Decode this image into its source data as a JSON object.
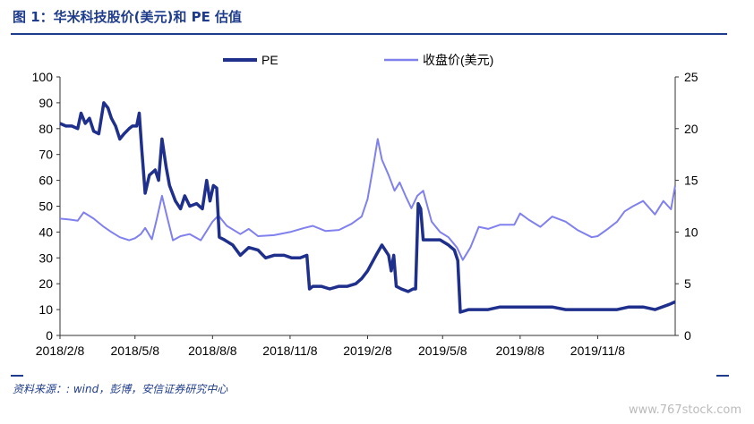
{
  "header": {
    "title": "图 1：华米科技股价(美元)和 PE 估值"
  },
  "footer": {
    "source": "资料来源：: wind，彭博，安信证券研究中心",
    "watermark": "www.767stock.com"
  },
  "colors": {
    "pe": "#1f2f8c",
    "price": "#8080ee",
    "accent": "#1f3c8c"
  },
  "chart_data": {
    "type": "line",
    "title": "",
    "xlabel": "",
    "ylabel": "",
    "x_ticks": [
      "2018/2/8",
      "2018/5/8",
      "2018/8/8",
      "2018/11/8",
      "2019/2/8",
      "2019/5/8",
      "2019/8/8",
      "2019/11/8"
    ],
    "x_range": [
      "2018/2/8",
      "2020/2/8"
    ],
    "ylim_left": [
      0,
      100
    ],
    "yticks_left": [
      0,
      10,
      20,
      30,
      40,
      50,
      60,
      70,
      80,
      90,
      100
    ],
    "ylim_right": [
      0,
      25
    ],
    "yticks_right": [
      0,
      5,
      10,
      15,
      20,
      25
    ],
    "grid": false,
    "legend_position": "top",
    "series": [
      {
        "name": "PE",
        "axis": "left",
        "points": [
          [
            "2018/2/8",
            82
          ],
          [
            "2018/2/15",
            81
          ],
          [
            "2018/2/22",
            81
          ],
          [
            "2018/3/1",
            80
          ],
          [
            "2018/3/5",
            86
          ],
          [
            "2018/3/10",
            82
          ],
          [
            "2018/3/15",
            84
          ],
          [
            "2018/3/20",
            79
          ],
          [
            "2018/3/26",
            78
          ],
          [
            "2018/4/1",
            90
          ],
          [
            "2018/4/6",
            88
          ],
          [
            "2018/4/10",
            84
          ],
          [
            "2018/4/15",
            81
          ],
          [
            "2018/4/20",
            76
          ],
          [
            "2018/4/25",
            78
          ],
          [
            "2018/5/1",
            80
          ],
          [
            "2018/5/5",
            81
          ],
          [
            "2018/5/10",
            81
          ],
          [
            "2018/5/13",
            86
          ],
          [
            "2018/5/16",
            72
          ],
          [
            "2018/5/20",
            55
          ],
          [
            "2018/5/25",
            62
          ],
          [
            "2018/6/1",
            64
          ],
          [
            "2018/6/5",
            60
          ],
          [
            "2018/6/9",
            76
          ],
          [
            "2018/6/14",
            65
          ],
          [
            "2018/6/18",
            58
          ],
          [
            "2018/6/25",
            52
          ],
          [
            "2018/7/1",
            49
          ],
          [
            "2018/7/6",
            54
          ],
          [
            "2018/7/12",
            50
          ],
          [
            "2018/7/20",
            51
          ],
          [
            "2018/7/27",
            49
          ],
          [
            "2018/8/1",
            60
          ],
          [
            "2018/8/5",
            52
          ],
          [
            "2018/8/9",
            58
          ],
          [
            "2018/8/13",
            57
          ],
          [
            "2018/8/16",
            38
          ],
          [
            "2018/8/22",
            37
          ],
          [
            "2018/9/1",
            35
          ],
          [
            "2018/9/10",
            31
          ],
          [
            "2018/9/20",
            34
          ],
          [
            "2018/10/1",
            33
          ],
          [
            "2018/10/10",
            30
          ],
          [
            "2018/10/20",
            31
          ],
          [
            "2018/11/1",
            31
          ],
          [
            "2018/11/10",
            30
          ],
          [
            "2018/11/20",
            30
          ],
          [
            "2018/11/28",
            31
          ],
          [
            "2018/12/1",
            18
          ],
          [
            "2018/12/5",
            19
          ],
          [
            "2018/12/15",
            19
          ],
          [
            "2018/12/25",
            18
          ],
          [
            "2019/1/5",
            19
          ],
          [
            "2019/1/15",
            19
          ],
          [
            "2019/1/25",
            20
          ],
          [
            "2019/2/1",
            22
          ],
          [
            "2019/2/8",
            25
          ],
          [
            "2019/2/18",
            31
          ],
          [
            "2019/2/25",
            35
          ],
          [
            "2019/3/5",
            31
          ],
          [
            "2019/3/8",
            25
          ],
          [
            "2019/3/11",
            31
          ],
          [
            "2019/3/14",
            19
          ],
          [
            "2019/3/20",
            18
          ],
          [
            "2019/3/28",
            17
          ],
          [
            "2019/4/3",
            18
          ],
          [
            "2019/4/6",
            18
          ],
          [
            "2019/4/9",
            51
          ],
          [
            "2019/4/12",
            49
          ],
          [
            "2019/4/15",
            37
          ],
          [
            "2019/4/25",
            37
          ],
          [
            "2019/5/5",
            37
          ],
          [
            "2019/5/15",
            35
          ],
          [
            "2019/5/22",
            33
          ],
          [
            "2019/5/26",
            29
          ],
          [
            "2019/5/29",
            9
          ],
          [
            "2019/6/8",
            10
          ],
          [
            "2019/6/20",
            10
          ],
          [
            "2019/7/1",
            10
          ],
          [
            "2019/7/15",
            11
          ],
          [
            "2019/8/1",
            11
          ],
          [
            "2019/8/8",
            11
          ],
          [
            "2019/8/20",
            11
          ],
          [
            "2019/9/1",
            11
          ],
          [
            "2019/9/15",
            11
          ],
          [
            "2019/10/1",
            10
          ],
          [
            "2019/10/15",
            10
          ],
          [
            "2019/11/1",
            10
          ],
          [
            "2019/11/15",
            10
          ],
          [
            "2019/12/1",
            10
          ],
          [
            "2019/12/15",
            11
          ],
          [
            "2020/1/1",
            11
          ],
          [
            "2020/1/15",
            10
          ],
          [
            "2020/2/1",
            12
          ],
          [
            "2020/2/8",
            13
          ]
        ]
      },
      {
        "name": "收盘价(美元)",
        "axis": "right",
        "points": [
          [
            "2018/2/8",
            11.3
          ],
          [
            "2018/2/20",
            11.2
          ],
          [
            "2018/3/1",
            11.1
          ],
          [
            "2018/3/8",
            11.9
          ],
          [
            "2018/3/20",
            11.3
          ],
          [
            "2018/4/1",
            10.5
          ],
          [
            "2018/4/10",
            10.0
          ],
          [
            "2018/4/20",
            9.5
          ],
          [
            "2018/5/1",
            9.2
          ],
          [
            "2018/5/8",
            9.4
          ],
          [
            "2018/5/15",
            9.8
          ],
          [
            "2018/5/20",
            10.4
          ],
          [
            "2018/5/28",
            9.3
          ],
          [
            "2018/6/3",
            11.3
          ],
          [
            "2018/6/9",
            13.5
          ],
          [
            "2018/6/15",
            11.5
          ],
          [
            "2018/6/22",
            9.2
          ],
          [
            "2018/7/1",
            9.6
          ],
          [
            "2018/7/12",
            9.8
          ],
          [
            "2018/7/25",
            9.2
          ],
          [
            "2018/8/1",
            10.1
          ],
          [
            "2018/8/8",
            11.0
          ],
          [
            "2018/8/15",
            11.6
          ],
          [
            "2018/8/25",
            10.6
          ],
          [
            "2018/9/10",
            9.8
          ],
          [
            "2018/9/20",
            10.3
          ],
          [
            "2018/10/1",
            9.6
          ],
          [
            "2018/10/20",
            9.7
          ],
          [
            "2018/11/8",
            10.0
          ],
          [
            "2018/11/25",
            10.4
          ],
          [
            "2018/12/5",
            10.6
          ],
          [
            "2018/12/20",
            10.1
          ],
          [
            "2019/1/5",
            10.2
          ],
          [
            "2019/1/20",
            10.8
          ],
          [
            "2019/2/1",
            11.5
          ],
          [
            "2019/2/8",
            13.2
          ],
          [
            "2019/2/15",
            16.5
          ],
          [
            "2019/2/20",
            19.0
          ],
          [
            "2019/2/25",
            17.0
          ],
          [
            "2019/3/5",
            15.5
          ],
          [
            "2019/3/12",
            14.0
          ],
          [
            "2019/3/18",
            14.8
          ],
          [
            "2019/3/25",
            13.5
          ],
          [
            "2019/4/1",
            12.3
          ],
          [
            "2019/4/8",
            13.5
          ],
          [
            "2019/4/15",
            14.0
          ],
          [
            "2019/4/25",
            11.0
          ],
          [
            "2019/5/5",
            10.0
          ],
          [
            "2019/5/15",
            9.5
          ],
          [
            "2019/5/25",
            8.5
          ],
          [
            "2019/6/1",
            7.3
          ],
          [
            "2019/6/10",
            8.5
          ],
          [
            "2019/6/20",
            10.5
          ],
          [
            "2019/7/1",
            10.3
          ],
          [
            "2019/7/15",
            10.7
          ],
          [
            "2019/8/1",
            10.7
          ],
          [
            "2019/8/8",
            11.8
          ],
          [
            "2019/8/18",
            11.2
          ],
          [
            "2019/9/1",
            10.5
          ],
          [
            "2019/9/15",
            11.5
          ],
          [
            "2019/10/1",
            11.0
          ],
          [
            "2019/10/15",
            10.2
          ],
          [
            "2019/11/1",
            9.5
          ],
          [
            "2019/11/8",
            9.6
          ],
          [
            "2019/11/20",
            10.3
          ],
          [
            "2019/12/1",
            11.0
          ],
          [
            "2019/12/10",
            12.0
          ],
          [
            "2019/12/20",
            12.5
          ],
          [
            "2020/1/1",
            13.0
          ],
          [
            "2020/1/15",
            11.7
          ],
          [
            "2020/1/25",
            13.0
          ],
          [
            "2020/2/3",
            12.2
          ],
          [
            "2020/2/8",
            14.5
          ]
        ]
      }
    ]
  }
}
